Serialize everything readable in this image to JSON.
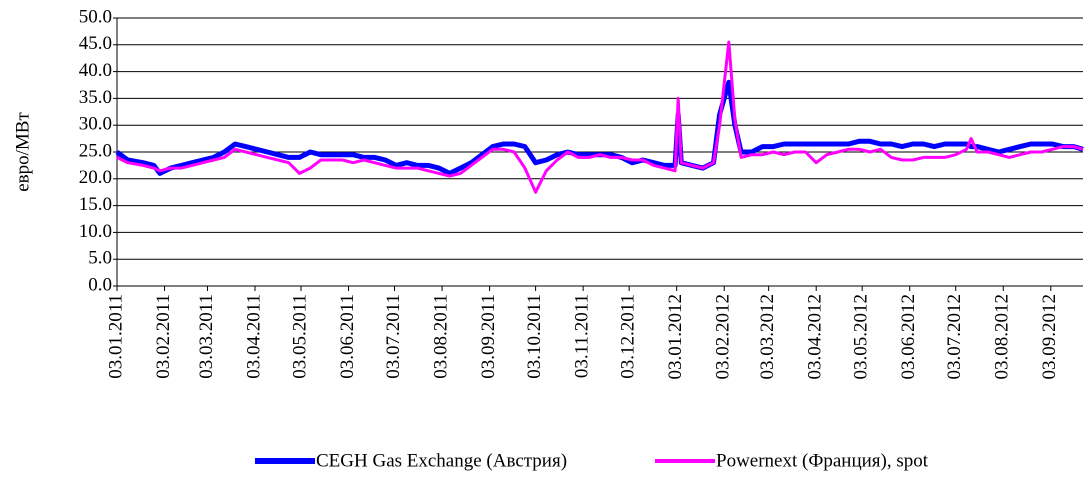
{
  "chart_data": {
    "type": "line",
    "y_axis_label": "евро/МВт",
    "x": [
      "03.01.2011",
      "10.01.2011",
      "20.01.2011",
      "27.01.2011",
      "31.01.2011",
      "07.02.2011",
      "14.02.2011",
      "21.02.2011",
      "28.02.2011",
      "07.03.2011",
      "14.03.2011",
      "21.03.2011",
      "28.03.2011",
      "04.04.2011",
      "11.04.2011",
      "18.04.2011",
      "25.04.2011",
      "02.05.2011",
      "09.05.2011",
      "16.05.2011",
      "23.05.2011",
      "30.05.2011",
      "06.06.2011",
      "13.06.2011",
      "20.06.2011",
      "27.06.2011",
      "04.07.2011",
      "11.07.2011",
      "18.07.2011",
      "25.07.2011",
      "01.08.2011",
      "08.08.2011",
      "15.08.2011",
      "22.08.2011",
      "29.08.2011",
      "05.09.2011",
      "12.09.2011",
      "19.09.2011",
      "26.09.2011",
      "03.10.2011",
      "10.10.2011",
      "17.10.2011",
      "24.10.2011",
      "31.10.2011",
      "07.11.2011",
      "14.11.2011",
      "21.11.2011",
      "28.11.2011",
      "05.12.2011",
      "12.12.2011",
      "19.12.2011",
      "26.12.2011",
      "02.01.2012",
      "04.01.2012",
      "06.01.2012",
      "13.01.2012",
      "20.01.2012",
      "27.01.2012",
      "31.01.2012",
      "06.02.2012",
      "10.02.2012",
      "14.02.2012",
      "21.02.2012",
      "28.02.2012",
      "06.03.2012",
      "13.03.2012",
      "20.03.2012",
      "27.03.2012",
      "03.04.2012",
      "10.04.2012",
      "17.04.2012",
      "24.04.2012",
      "01.05.2012",
      "08.05.2012",
      "15.05.2012",
      "22.05.2012",
      "29.05.2012",
      "05.06.2012",
      "12.06.2012",
      "19.06.2012",
      "26.06.2012",
      "03.07.2012",
      "10.07.2012",
      "13.07.2012",
      "17.07.2012",
      "24.07.2012",
      "31.07.2012",
      "07.08.2012",
      "14.08.2012",
      "21.08.2012",
      "28.08.2012",
      "04.09.2012",
      "11.09.2012",
      "18.09.2012",
      "24.09.2012"
    ],
    "series": [
      {
        "name": "CEGH Gas Exchange (Австрия)",
        "color": "#0000ff",
        "width": 5,
        "values": [
          25,
          23.5,
          23,
          22.5,
          21,
          22,
          22.5,
          23,
          23.5,
          24,
          25,
          26.5,
          26,
          25.5,
          25,
          24.5,
          24,
          24,
          25,
          24.5,
          24.5,
          24.5,
          24.5,
          24,
          24,
          23.5,
          22.5,
          23,
          22.5,
          22.5,
          22,
          21,
          22,
          23,
          24.5,
          26,
          26.5,
          26.5,
          26,
          23,
          23.5,
          24.5,
          25,
          24.5,
          24.5,
          24.5,
          24.5,
          24,
          23,
          23.5,
          23,
          22.5,
          22.5,
          32,
          23,
          22.5,
          22,
          23,
          32,
          38,
          30,
          25,
          25,
          26,
          26,
          26.5,
          26.5,
          26.5,
          26.5,
          26.5,
          26.5,
          26.5,
          27,
          27,
          26.5,
          26.5,
          26,
          26.5,
          26.5,
          26,
          26.5,
          26.5,
          26.5,
          26,
          26,
          25.5,
          25,
          25.5,
          26,
          26.5,
          26.5,
          26.5,
          26,
          26,
          25.5
        ]
      },
      {
        "name": "Powernext (Франция), spot",
        "color": "#ff00ff",
        "width": 3,
        "values": [
          24,
          23,
          22.5,
          22,
          21.5,
          22,
          22,
          22.5,
          23,
          23.5,
          24,
          25.5,
          25,
          24.5,
          24,
          23.5,
          23,
          21,
          22,
          23.5,
          23.5,
          23.5,
          23,
          23.5,
          23,
          22.5,
          22,
          22,
          22,
          21.5,
          21,
          20.5,
          21,
          22.5,
          24,
          25.5,
          25.5,
          25,
          22,
          17.5,
          21.5,
          23.5,
          25,
          24,
          24,
          24.5,
          24,
          24,
          23.5,
          23.5,
          22.5,
          22,
          21.5,
          35,
          23,
          22.5,
          22,
          23,
          30,
          45.5,
          31,
          24,
          24.5,
          24.5,
          25,
          24.5,
          25,
          25,
          23,
          24.5,
          25,
          25.5,
          25.5,
          25,
          25.5,
          24,
          23.5,
          23.5,
          24,
          24,
          24,
          24.5,
          25.5,
          27.5,
          25,
          25,
          24.5,
          24,
          24.5,
          25,
          25,
          25.5,
          26,
          26,
          25.5
        ]
      }
    ],
    "xlim": [
      "03.01.2011",
      "24.09.2012"
    ],
    "xticks": [
      "03.01.2011",
      "03.02.2011",
      "03.03.2011",
      "03.04.2011",
      "03.05.2011",
      "03.06.2011",
      "03.07.2011",
      "03.08.2011",
      "03.09.2011",
      "03.10.2011",
      "03.11.2011",
      "03.12.2011",
      "03.01.2012",
      "03.02.2012",
      "03.03.2012",
      "03.04.2012",
      "03.05.2012",
      "03.06.2012",
      "03.07.2012",
      "03.08.2012",
      "03.09.2012"
    ],
    "ylim": [
      0,
      50
    ],
    "yticks": [
      {
        "value": 0,
        "label": "0.0"
      },
      {
        "value": 5,
        "label": "5.0"
      },
      {
        "value": 10,
        "label": "10.0"
      },
      {
        "value": 15,
        "label": "15.0"
      },
      {
        "value": 20,
        "label": "20.0"
      },
      {
        "value": 25,
        "label": "25.0"
      },
      {
        "value": 30,
        "label": "30.0"
      },
      {
        "value": 35,
        "label": "35.0"
      },
      {
        "value": 40,
        "label": "40.0"
      },
      {
        "value": 45,
        "label": "45.0"
      },
      {
        "value": 50,
        "label": "50.0"
      }
    ],
    "grid": true,
    "legend": "bottom"
  }
}
